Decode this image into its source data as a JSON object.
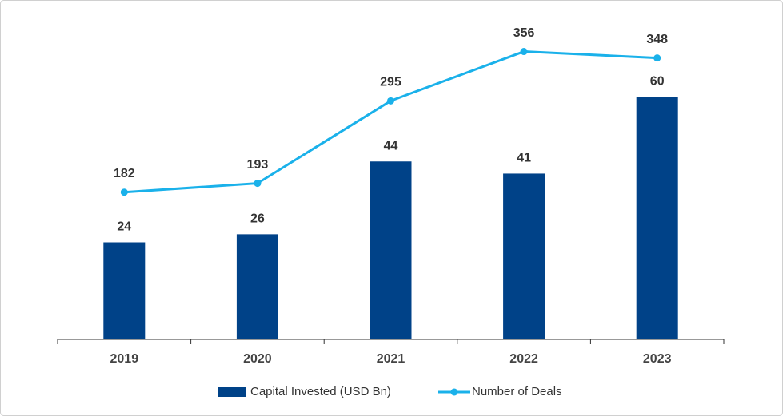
{
  "chart_data": {
    "type": "bar-line",
    "categories": [
      "2019",
      "2020",
      "2021",
      "2022",
      "2023"
    ],
    "series": [
      {
        "name": "Capital Invested (USD Bn)",
        "type": "bar",
        "color": "#004288",
        "values": [
          24,
          26,
          44,
          41,
          60
        ]
      },
      {
        "name": "Number of Deals",
        "type": "line",
        "axis": "y2",
        "color": "#1ab1ea",
        "values": [
          182,
          193,
          295,
          356,
          348
        ]
      }
    ],
    "ylim": [
      0,
      80
    ],
    "y2lim": [
      0,
      400
    ],
    "grid": false,
    "legend": "bottom"
  }
}
